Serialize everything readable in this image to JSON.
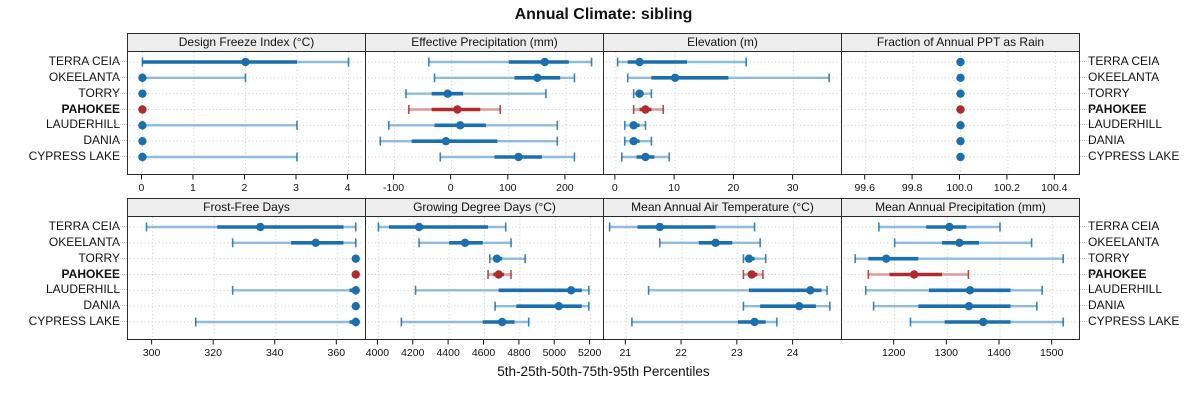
{
  "title": "Annual Climate: sibling",
  "caption": "5th-25th-50th-75th-95th Percentiles",
  "sites": [
    "TERRA CEIA",
    "OKEELANTA",
    "TORRY",
    "PAHOKEE",
    "LAUDERHILL",
    "DANIA",
    "CYPRESS LAKE"
  ],
  "highlight_site": "PAHOKEE",
  "colors": {
    "series_blue": "#1b6fad",
    "series_blue_light": "#8fbcdc",
    "series_red": "#ad2c30",
    "series_red_light": "#dc9b96",
    "strip_bg": "#ededed",
    "panel_border": "#2b2b2b",
    "grid": "#cbcbcb",
    "text": "#111111"
  },
  "chart_data": [
    {
      "type": "scatter",
      "subtype": "percentile-intervals",
      "row": 0,
      "title": "Design Freeze Index (°C)",
      "xlim": [
        -0.28,
        4.32
      ],
      "tick_values": [
        0,
        1,
        2,
        3,
        4
      ],
      "tick_labels": [
        "0",
        "1",
        "2",
        "3",
        "4"
      ],
      "percentile_order": [
        "p5",
        "p25",
        "p50",
        "p75",
        "p95"
      ],
      "series": [
        {
          "site": "TERRA CEIA",
          "percentiles": [
            0,
            0,
            2,
            3,
            4
          ]
        },
        {
          "site": "OKEELANTA",
          "percentiles": [
            0,
            0,
            0,
            0,
            2
          ]
        },
        {
          "site": "TORRY",
          "percentiles": [
            0,
            0,
            0,
            0,
            0
          ]
        },
        {
          "site": "PAHOKEE",
          "percentiles": [
            0,
            0,
            0,
            0,
            0
          ]
        },
        {
          "site": "LAUDERHILL",
          "percentiles": [
            0,
            0,
            0,
            0,
            3
          ]
        },
        {
          "site": "DANIA",
          "percentiles": [
            0,
            0,
            0,
            0,
            0
          ]
        },
        {
          "site": "CYPRESS LAKE",
          "percentiles": [
            0,
            0,
            0,
            0,
            3
          ]
        }
      ]
    },
    {
      "type": "scatter",
      "subtype": "percentile-intervals",
      "row": 0,
      "title": "Effective Precipitation (mm)",
      "xlim": [
        -150,
        265
      ],
      "tick_values": [
        -100,
        0,
        100,
        200
      ],
      "tick_labels": [
        "-100",
        "0",
        "100",
        "200"
      ],
      "series": [
        {
          "site": "TERRA CEIA",
          "percentiles": [
            -40,
            100,
            163,
            205,
            245
          ]
        },
        {
          "site": "OKEELANTA",
          "percentiles": [
            -30,
            110,
            150,
            190,
            215
          ]
        },
        {
          "site": "TORRY",
          "percentiles": [
            -80,
            -35,
            -7,
            20,
            165
          ]
        },
        {
          "site": "PAHOKEE",
          "percentiles": [
            -75,
            -35,
            10,
            50,
            85
          ]
        },
        {
          "site": "LAUDERHILL",
          "percentiles": [
            -110,
            -30,
            15,
            60,
            185
          ]
        },
        {
          "site": "DANIA",
          "percentiles": [
            -125,
            -70,
            -10,
            80,
            185
          ]
        },
        {
          "site": "CYPRESS LAKE",
          "percentiles": [
            -20,
            75,
            117,
            158,
            215
          ]
        }
      ]
    },
    {
      "type": "scatter",
      "subtype": "percentile-intervals",
      "row": 0,
      "title": "Elevation (m)",
      "xlim": [
        -2,
        38
      ],
      "tick_values": [
        0,
        10,
        20,
        30
      ],
      "tick_labels": [
        "0",
        "10",
        "20",
        "30"
      ],
      "series": [
        {
          "site": "TERRA CEIA",
          "percentiles": [
            0.3,
            2,
            4,
            12,
            22
          ]
        },
        {
          "site": "OKEELANTA",
          "percentiles": [
            2,
            6,
            10,
            19,
            36
          ]
        },
        {
          "site": "TORRY",
          "percentiles": [
            3,
            3.5,
            4,
            4.7,
            6
          ]
        },
        {
          "site": "PAHOKEE",
          "percentiles": [
            3,
            4,
            5,
            6,
            8
          ]
        },
        {
          "site": "LAUDERHILL",
          "percentiles": [
            1.5,
            2.5,
            3,
            4,
            5
          ]
        },
        {
          "site": "DANIA",
          "percentiles": [
            1.5,
            2.5,
            3,
            4,
            6
          ]
        },
        {
          "site": "CYPRESS LAKE",
          "percentiles": [
            1,
            3.5,
            5,
            6.5,
            9
          ]
        }
      ]
    },
    {
      "type": "scatter",
      "subtype": "percentile-intervals",
      "row": 0,
      "title": "Fraction of Annual PPT as Rain",
      "xlim": [
        99.5,
        100.5
      ],
      "tick_values": [
        99.6,
        99.8,
        100.0,
        100.2,
        100.4
      ],
      "tick_labels": [
        "99.6",
        "99.8",
        "100.0",
        "100.2",
        "100.4"
      ],
      "series": [
        {
          "site": "TERRA CEIA",
          "percentiles": [
            100,
            100,
            100,
            100,
            100
          ]
        },
        {
          "site": "OKEELANTA",
          "percentiles": [
            100,
            100,
            100,
            100,
            100
          ]
        },
        {
          "site": "TORRY",
          "percentiles": [
            100,
            100,
            100,
            100,
            100
          ]
        },
        {
          "site": "PAHOKEE",
          "percentiles": [
            100,
            100,
            100,
            100,
            100
          ]
        },
        {
          "site": "LAUDERHILL",
          "percentiles": [
            100,
            100,
            100,
            100,
            100
          ]
        },
        {
          "site": "DANIA",
          "percentiles": [
            100,
            100,
            100,
            100,
            100
          ]
        },
        {
          "site": "CYPRESS LAKE",
          "percentiles": [
            100,
            100,
            100,
            100,
            100
          ]
        }
      ]
    },
    {
      "type": "scatter",
      "subtype": "percentile-intervals",
      "row": 1,
      "title": "Frost-Free Days",
      "xlim": [
        292,
        369
      ],
      "tick_values": [
        300,
        320,
        340,
        360
      ],
      "tick_labels": [
        "300",
        "320",
        "340",
        "360"
      ],
      "series": [
        {
          "site": "TERRA CEIA",
          "percentiles": [
            298,
            321,
            335,
            362,
            366
          ]
        },
        {
          "site": "OKEELANTA",
          "percentiles": [
            326,
            345,
            353,
            362,
            366
          ]
        },
        {
          "site": "TORRY",
          "percentiles": [
            366,
            366,
            366,
            366,
            366
          ]
        },
        {
          "site": "PAHOKEE",
          "percentiles": [
            366,
            366,
            366,
            366,
            366
          ]
        },
        {
          "site": "LAUDERHILL",
          "percentiles": [
            326,
            364,
            366,
            366,
            366
          ]
        },
        {
          "site": "DANIA",
          "percentiles": [
            366,
            366,
            366,
            366,
            366
          ]
        },
        {
          "site": "CYPRESS LAKE",
          "percentiles": [
            314,
            364,
            366,
            366,
            366
          ]
        }
      ]
    },
    {
      "type": "scatter",
      "subtype": "percentile-intervals",
      "row": 1,
      "title": "Growing Degree Days (°C)",
      "xlim": [
        3930,
        5270
      ],
      "tick_values": [
        4000,
        4200,
        4400,
        4600,
        4800,
        5000,
        5200
      ],
      "tick_labels": [
        "4000",
        "4200",
        "4400",
        "4600",
        "4800",
        "5000",
        "5200"
      ],
      "series": [
        {
          "site": "TERRA CEIA",
          "percentiles": [
            4000,
            4060,
            4230,
            4620,
            4720
          ]
        },
        {
          "site": "OKEELANTA",
          "percentiles": [
            4230,
            4400,
            4490,
            4590,
            4750
          ]
        },
        {
          "site": "TORRY",
          "percentiles": [
            4630,
            4650,
            4670,
            4700,
            4830
          ]
        },
        {
          "site": "PAHOKEE",
          "percentiles": [
            4620,
            4650,
            4680,
            4710,
            4750
          ]
        },
        {
          "site": "LAUDERHILL",
          "percentiles": [
            4210,
            4680,
            5090,
            5150,
            5190
          ]
        },
        {
          "site": "DANIA",
          "percentiles": [
            4660,
            4780,
            5020,
            5150,
            5190
          ]
        },
        {
          "site": "CYPRESS LAKE",
          "percentiles": [
            4130,
            4590,
            4700,
            4770,
            4850
          ]
        }
      ]
    },
    {
      "type": "scatter",
      "subtype": "percentile-intervals",
      "row": 1,
      "title": "Mean Annual Air Temperature (°C)",
      "xlim": [
        20.6,
        24.85
      ],
      "tick_values": [
        21,
        22,
        23,
        24
      ],
      "tick_labels": [
        "21",
        "22",
        "23",
        "24"
      ],
      "series": [
        {
          "site": "TERRA CEIA",
          "percentiles": [
            20.7,
            21.2,
            21.6,
            22.6,
            23.3
          ]
        },
        {
          "site": "OKEELANTA",
          "percentiles": [
            21.6,
            22.3,
            22.6,
            22.9,
            23.4
          ]
        },
        {
          "site": "TORRY",
          "percentiles": [
            23.1,
            23.15,
            23.2,
            23.3,
            23.5
          ]
        },
        {
          "site": "PAHOKEE",
          "percentiles": [
            23.1,
            23.2,
            23.25,
            23.35,
            23.45
          ]
        },
        {
          "site": "LAUDERHILL",
          "percentiles": [
            21.4,
            23.2,
            24.3,
            24.5,
            24.6
          ]
        },
        {
          "site": "DANIA",
          "percentiles": [
            23.1,
            23.4,
            24.1,
            24.4,
            24.65
          ]
        },
        {
          "site": "CYPRESS LAKE",
          "percentiles": [
            21.1,
            23.0,
            23.3,
            23.5,
            23.7
          ]
        }
      ]
    },
    {
      "type": "scatter",
      "subtype": "percentile-intervals",
      "row": 1,
      "title": "Mean Annual Precipitation (mm)",
      "xlim": [
        1100,
        1550
      ],
      "tick_values": [
        1200,
        1300,
        1400,
        1500
      ],
      "tick_labels": [
        "1200",
        "1300",
        "1400",
        "1500"
      ],
      "series": [
        {
          "site": "TERRA CEIA",
          "percentiles": [
            1170,
            1260,
            1304,
            1336,
            1400
          ]
        },
        {
          "site": "OKEELANTA",
          "percentiles": [
            1200,
            1290,
            1323,
            1360,
            1460
          ]
        },
        {
          "site": "TORRY",
          "percentiles": [
            1125,
            1150,
            1184,
            1245,
            1520
          ]
        },
        {
          "site": "PAHOKEE",
          "percentiles": [
            1150,
            1190,
            1237,
            1290,
            1340
          ]
        },
        {
          "site": "LAUDERHILL",
          "percentiles": [
            1145,
            1265,
            1343,
            1420,
            1480
          ]
        },
        {
          "site": "DANIA",
          "percentiles": [
            1160,
            1245,
            1341,
            1420,
            1470
          ]
        },
        {
          "site": "CYPRESS LAKE",
          "percentiles": [
            1230,
            1295,
            1368,
            1420,
            1520
          ]
        }
      ]
    }
  ]
}
